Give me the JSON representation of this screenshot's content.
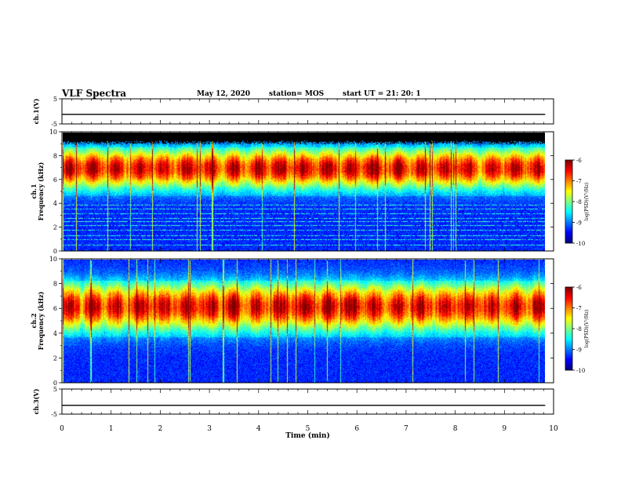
{
  "header": {
    "title": "VLF Spectra",
    "date": "May 12, 2020",
    "station": "station= MOS",
    "start": "start  UT =   21: 20: 1"
  },
  "chart_data": [
    {
      "type": "line",
      "panel": "ch1-voltage",
      "ylabel": "ch.1(V)",
      "ylim": [
        -5,
        5
      ],
      "yticks": [
        "5",
        "-5"
      ],
      "xlim": [
        0,
        10
      ],
      "series": [
        {
          "x": [
            0,
            9.83
          ],
          "values": [
            -1.2,
            -1.2
          ]
        }
      ]
    },
    {
      "type": "heatmap",
      "panel": "ch1-spectrogram",
      "ylabel": "ch.1\nFrequency  (kHz)",
      "ylim": [
        0,
        10
      ],
      "yticks": [
        "0",
        "2",
        "4",
        "6",
        "8",
        "10"
      ],
      "xlim": [
        0,
        10
      ],
      "data_end_min": 9.83,
      "colorbar": {
        "label": "log(PSD)(V²/Hz)",
        "range": [
          -10,
          -6
        ],
        "ticks": [
          "-6",
          "-7",
          "-8",
          "-9",
          "-10"
        ]
      },
      "features": {
        "emission_band_khz": [
          5.0,
          8.5
        ],
        "peak_khz": 7.0,
        "blackout_above_khz": 9.0,
        "background_lines_khz": [
          0.5,
          1.0,
          1.3,
          1.8,
          2.2,
          2.5,
          2.8,
          3.2,
          3.6,
          3.9
        ]
      }
    },
    {
      "type": "heatmap",
      "panel": "ch2-spectrogram",
      "ylabel": "ch.2\nFrequency  (kHz)",
      "ylim": [
        0,
        10
      ],
      "yticks": [
        "0",
        "2",
        "4",
        "6",
        "8",
        "10"
      ],
      "xlim": [
        0,
        10
      ],
      "data_end_min": 9.83,
      "colorbar": {
        "label": "log(PSD)(V²/Hz)",
        "range": [
          -10,
          -6
        ],
        "ticks": [
          "-6",
          "-7",
          "-8",
          "-9",
          "-10"
        ]
      },
      "features": {
        "emission_band_khz": [
          4.0,
          8.0
        ],
        "peak_khz": 6.2
      }
    },
    {
      "type": "line",
      "panel": "ch3-voltage",
      "ylabel": "ch.3(V)",
      "ylim": [
        -5,
        5
      ],
      "yticks": [
        "5",
        "-5"
      ],
      "xlim": [
        0,
        10
      ],
      "xlabel": "Time  (min)",
      "xticks": [
        "0",
        "1",
        "2",
        "3",
        "4",
        "5",
        "6",
        "7",
        "8",
        "9",
        "10"
      ],
      "series": [
        {
          "x": [
            0,
            9.83
          ],
          "values": [
            -1.5,
            -1.5
          ]
        }
      ]
    }
  ],
  "colors": {
    "jet": [
      "#00007f",
      "#0000ff",
      "#007fff",
      "#00ffff",
      "#7fff7f",
      "#ffff00",
      "#ff7f00",
      "#ff0000",
      "#7f0000"
    ],
    "blackout": "#000000"
  }
}
